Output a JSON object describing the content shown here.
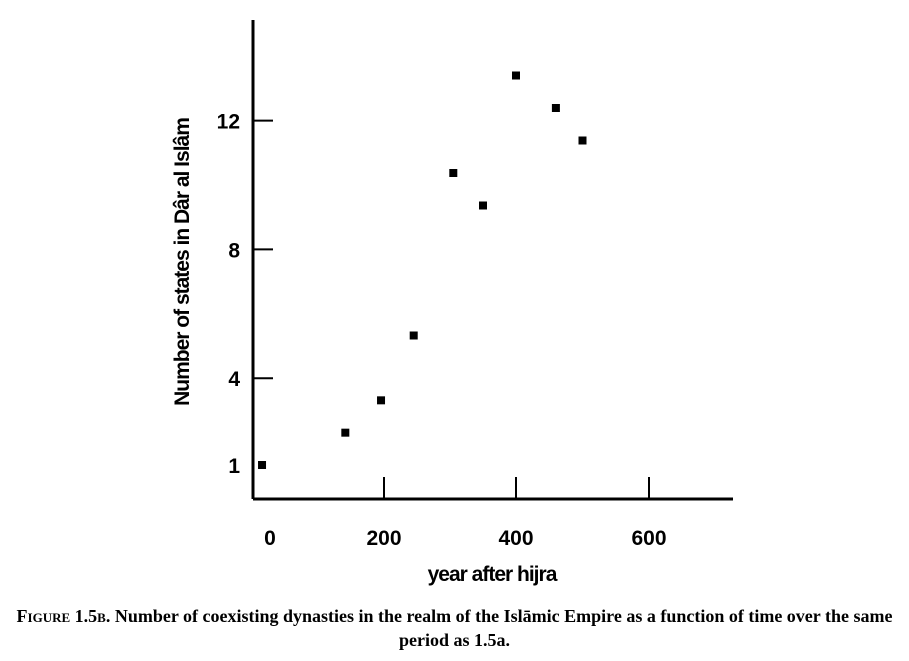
{
  "chart_data": {
    "type": "scatter",
    "x": [
      -5,
      135,
      195,
      245,
      305,
      350,
      400,
      460,
      500
    ],
    "y": [
      1,
      2,
      3,
      5,
      10,
      9,
      13,
      12,
      11
    ],
    "xlabel": "year after hijra",
    "ylabel": "Number of states in Dâr al Islâm",
    "x_ticks": [
      0,
      200,
      400,
      600
    ],
    "x_tick_labels": [
      "0",
      "200",
      "400",
      "600"
    ],
    "y_ticks": [
      1,
      4,
      8,
      12
    ],
    "y_tick_labels": [
      "1",
      "4",
      "8",
      "12"
    ],
    "xlim": [
      -15,
      715
    ],
    "ylim": [
      0,
      15
    ],
    "grid": false,
    "marker_color": "#000000"
  },
  "caption": {
    "lead": "Figure 1.5b.",
    "text": "Number of coexisting dynasties in the realm of the Islāmic Empire as a function of time over the same period as 1.5a."
  }
}
